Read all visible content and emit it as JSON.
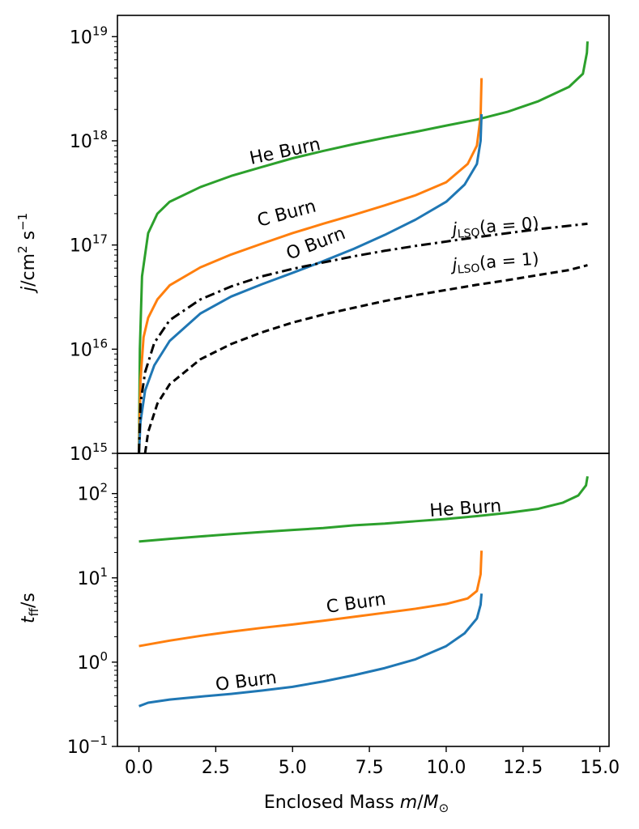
{
  "chart_data": [
    {
      "panel": "top",
      "type": "line",
      "ylabel_parts": [
        "j",
        "/cm",
        "2",
        " s",
        "−1"
      ],
      "yscale": "log",
      "ylim": [
        1000000000000000.0,
        1.6e+19
      ],
      "yticks": [
        {
          "base": "10",
          "exp": "15",
          "value": 1000000000000000.0
        },
        {
          "base": "10",
          "exp": "16",
          "value": 1e+16
        },
        {
          "base": "10",
          "exp": "17",
          "value": 1e+17
        },
        {
          "base": "10",
          "exp": "18",
          "value": 1e+18
        },
        {
          "base": "10",
          "exp": "19",
          "value": 1e+19
        }
      ],
      "xlim": [
        -0.7,
        15.3
      ],
      "series": [
        {
          "key": "he",
          "label_text": "He Burn",
          "color": "#2ca02c",
          "dash": "solid",
          "points": [
            [
              0.0,
              1000000000000000.0
            ],
            [
              0.03,
              1e+16
            ],
            [
              0.1,
              5e+16
            ],
            [
              0.3,
              1.3e+17
            ],
            [
              0.6,
              2e+17
            ],
            [
              1,
              2.6e+17
            ],
            [
              2,
              3.6e+17
            ],
            [
              3,
              4.6e+17
            ],
            [
              4,
              5.6e+17
            ],
            [
              5,
              6.8e+17
            ],
            [
              6,
              8e+17
            ],
            [
              7,
              9.3e+17
            ],
            [
              8,
              1.07e+18
            ],
            [
              9,
              1.22e+18
            ],
            [
              10,
              1.4e+18
            ],
            [
              11,
              1.6e+18
            ],
            [
              12,
              1.9e+18
            ],
            [
              13,
              2.4e+18
            ],
            [
              14,
              3.3e+18
            ],
            [
              14.45,
              4.4e+18
            ],
            [
              14.58,
              7e+18
            ],
            [
              14.6,
              9e+18
            ]
          ]
        },
        {
          "key": "c",
          "label_text": "C Burn",
          "color": "#ff7f0e",
          "dash": "solid",
          "points": [
            [
              0.0,
              1000000000000000.0
            ],
            [
              0.05,
              5000000000000000.0
            ],
            [
              0.15,
              1.3e+16
            ],
            [
              0.3,
              2e+16
            ],
            [
              0.6,
              3e+16
            ],
            [
              1,
              4.1e+16
            ],
            [
              2,
              6.1e+16
            ],
            [
              3,
              8.1e+16
            ],
            [
              4,
              1.03e+17
            ],
            [
              5,
              1.3e+17
            ],
            [
              6,
              1.6e+17
            ],
            [
              7,
              1.95e+17
            ],
            [
              8,
              2.4e+17
            ],
            [
              9,
              3e+17
            ],
            [
              10,
              4e+17
            ],
            [
              10.7,
              6e+17
            ],
            [
              11.0,
              9e+17
            ],
            [
              11.12,
              1.7e+18
            ],
            [
              11.15,
              4e+18
            ]
          ]
        },
        {
          "key": "o",
          "label_text": "O Burn",
          "color": "#1f77b4",
          "dash": "solid",
          "points": [
            [
              0.0,
              1000000000000000.0
            ],
            [
              0.05,
              2000000000000000.0
            ],
            [
              0.2,
              4000000000000000.0
            ],
            [
              0.5,
              7000000000000000.0
            ],
            [
              1,
              1.2e+16
            ],
            [
              2,
              2.2e+16
            ],
            [
              3,
              3.2e+16
            ],
            [
              4,
              4.2e+16
            ],
            [
              5,
              5.4e+16
            ],
            [
              6,
              7e+16
            ],
            [
              7,
              9.2e+16
            ],
            [
              8,
              1.25e+17
            ],
            [
              9,
              1.75e+17
            ],
            [
              10,
              2.6e+17
            ],
            [
              10.6,
              3.8e+17
            ],
            [
              11.0,
              6e+17
            ],
            [
              11.12,
              1e+18
            ],
            [
              11.15,
              1.8e+18
            ]
          ]
        },
        {
          "key": "lso0",
          "label_main": "j",
          "label_sub": "LSO",
          "label_rest": "(a = 0)",
          "color": "#000000",
          "dash": "dashdot",
          "points": [
            [
              0.0,
              1000000000000000.0
            ],
            [
              0.05,
              3000000000000000.0
            ],
            [
              0.2,
              6000000000000000.0
            ],
            [
              0.5,
              1.15e+16
            ],
            [
              1,
              1.9e+16
            ],
            [
              2,
              3e+16
            ],
            [
              3,
              4e+16
            ],
            [
              4,
              5e+16
            ],
            [
              5,
              5.9e+16
            ],
            [
              6,
              6.8e+16
            ],
            [
              7,
              7.8e+16
            ],
            [
              8,
              8.8e+16
            ],
            [
              9,
              9.8e+16
            ],
            [
              10,
              1.08e+17
            ],
            [
              11,
              1.19e+17
            ],
            [
              12,
              1.3e+17
            ],
            [
              13,
              1.42e+17
            ],
            [
              14,
              1.53e+17
            ],
            [
              14.6,
              1.6e+17
            ]
          ]
        },
        {
          "key": "lso1",
          "label_main": "j",
          "label_sub": "LSO",
          "label_rest": "(a = 1)",
          "color": "#000000",
          "dash": "dashed",
          "points": [
            [
              0.2,
              1000000000000000.0
            ],
            [
              0.3,
              1600000000000000.0
            ],
            [
              0.6,
              3000000000000000.0
            ],
            [
              1,
              4600000000000000.0
            ],
            [
              2,
              8000000000000000.0
            ],
            [
              3,
              1.12e+16
            ],
            [
              4,
              1.45e+16
            ],
            [
              5,
              1.8e+16
            ],
            [
              6,
              2.15e+16
            ],
            [
              7,
              2.5e+16
            ],
            [
              8,
              2.9e+16
            ],
            [
              9,
              3.3e+16
            ],
            [
              10,
              3.7e+16
            ],
            [
              11,
              4.15e+16
            ],
            [
              12,
              4.6e+16
            ],
            [
              13,
              5.15e+16
            ],
            [
              14,
              5.75e+16
            ],
            [
              14.6,
              6.4e+16
            ]
          ]
        }
      ]
    },
    {
      "panel": "bottom",
      "type": "line",
      "ylabel_parts": [
        "t",
        "ff",
        "/s"
      ],
      "yscale": "log",
      "ylim": [
        0.1,
        300
      ],
      "yticks": [
        {
          "base": "10",
          "exp": "−1",
          "value": 0.1
        },
        {
          "base": "10",
          "exp": "0",
          "value": 1
        },
        {
          "base": "10",
          "exp": "1",
          "value": 10
        },
        {
          "base": "10",
          "exp": "2",
          "value": 100
        }
      ],
      "xlim": [
        -0.7,
        15.3
      ],
      "xticks": [
        "0.0",
        "2.5",
        "5.0",
        "7.5",
        "10.0",
        "12.5",
        "15.0"
      ],
      "xtick_values": [
        0,
        2.5,
        5,
        7.5,
        10,
        12.5,
        15
      ],
      "xlabel_parts": [
        "Enclosed Mass ",
        "m",
        "/",
        "M",
        "⊙"
      ],
      "series": [
        {
          "key": "he",
          "label_text": "He Burn",
          "color": "#2ca02c",
          "dash": "solid",
          "points": [
            [
              0,
              27
            ],
            [
              1,
              29
            ],
            [
              2,
              31
            ],
            [
              3,
              33
            ],
            [
              4,
              35
            ],
            [
              5,
              37
            ],
            [
              6,
              39
            ],
            [
              7,
              42
            ],
            [
              8,
              44
            ],
            [
              9,
              47
            ],
            [
              10,
              50
            ],
            [
              11,
              54
            ],
            [
              12,
              59
            ],
            [
              13,
              66
            ],
            [
              13.8,
              78
            ],
            [
              14.3,
              95
            ],
            [
              14.55,
              125
            ],
            [
              14.6,
              160
            ]
          ]
        },
        {
          "key": "c",
          "label_text": "C Burn",
          "color": "#ff7f0e",
          "dash": "solid",
          "points": [
            [
              0,
              1.55
            ],
            [
              1,
              1.8
            ],
            [
              2,
              2.05
            ],
            [
              3,
              2.3
            ],
            [
              4,
              2.55
            ],
            [
              5,
              2.8
            ],
            [
              6,
              3.1
            ],
            [
              7,
              3.45
            ],
            [
              8,
              3.85
            ],
            [
              9,
              4.3
            ],
            [
              10,
              4.9
            ],
            [
              10.7,
              5.7
            ],
            [
              11.0,
              7
            ],
            [
              11.12,
              11
            ],
            [
              11.15,
              21
            ]
          ]
        },
        {
          "key": "o",
          "label_text": "O Burn",
          "color": "#1f77b4",
          "dash": "solid",
          "points": [
            [
              0,
              0.3
            ],
            [
              0.3,
              0.33
            ],
            [
              1,
              0.36
            ],
            [
              2,
              0.39
            ],
            [
              3,
              0.42
            ],
            [
              4,
              0.46
            ],
            [
              5,
              0.51
            ],
            [
              6,
              0.59
            ],
            [
              7,
              0.7
            ],
            [
              8,
              0.85
            ],
            [
              9,
              1.08
            ],
            [
              10,
              1.55
            ],
            [
              10.6,
              2.2
            ],
            [
              11.0,
              3.3
            ],
            [
              11.12,
              4.8
            ],
            [
              11.15,
              6.5
            ]
          ]
        }
      ]
    }
  ]
}
